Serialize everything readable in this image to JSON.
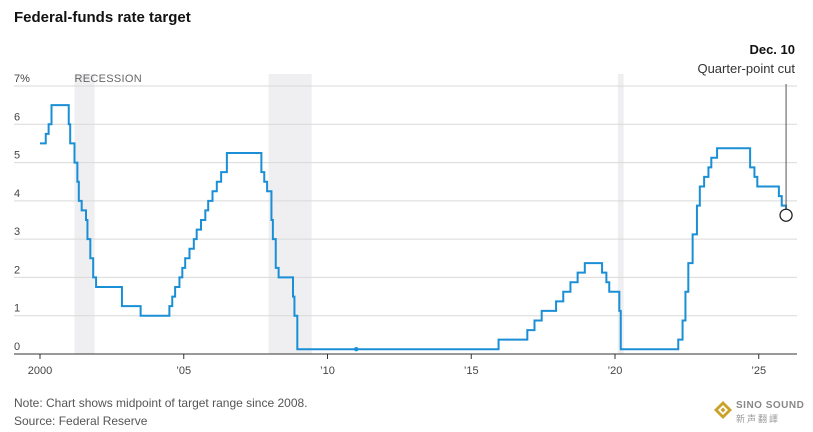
{
  "title": "Federal-funds rate target",
  "note": "Note: Chart shows midpoint of target range since 2008.",
  "source": "Source: Federal Reserve",
  "watermark": {
    "brand": "SINO SOUND",
    "cn": "新声翻譯"
  },
  "colors": {
    "line": "#1a8fd6",
    "recession": "#efeff1",
    "grid": "#d9d9d9",
    "axis": "#333333"
  },
  "chart_data": {
    "type": "line",
    "title": "Federal-funds rate target",
    "y_unit_label": "7%",
    "y_ticks": [
      0,
      1,
      2,
      3,
      4,
      5,
      6,
      7
    ],
    "x_ticks": [
      {
        "value": 2000,
        "label": "2000"
      },
      {
        "value": 2005,
        "label": "’05"
      },
      {
        "value": 2010,
        "label": "’10"
      },
      {
        "value": 2015,
        "label": "’15"
      },
      {
        "value": 2020,
        "label": "’20"
      },
      {
        "value": 2025,
        "label": "’25"
      }
    ],
    "xlim": [
      2000,
      2026
    ],
    "ylim": [
      0,
      7
    ],
    "grid": "horizontal",
    "recession_label": "RECESSION",
    "recessions": [
      [
        2001.2,
        2001.9
      ],
      [
        2007.95,
        2009.45
      ],
      [
        2020.1,
        2020.3
      ]
    ],
    "series": [
      {
        "points": [
          [
            2000.0,
            5.5
          ],
          [
            2000.2,
            5.75
          ],
          [
            2000.3,
            6.0
          ],
          [
            2000.4,
            6.5
          ],
          [
            2001.0,
            6.0
          ],
          [
            2001.05,
            5.5
          ],
          [
            2001.2,
            5.0
          ],
          [
            2001.3,
            4.5
          ],
          [
            2001.35,
            4.0
          ],
          [
            2001.45,
            3.75
          ],
          [
            2001.6,
            3.5
          ],
          [
            2001.65,
            3.0
          ],
          [
            2001.75,
            2.5
          ],
          [
            2001.85,
            2.0
          ],
          [
            2001.95,
            1.75
          ],
          [
            2002.85,
            1.25
          ],
          [
            2003.5,
            1.0
          ],
          [
            2004.5,
            1.25
          ],
          [
            2004.6,
            1.5
          ],
          [
            2004.7,
            1.75
          ],
          [
            2004.85,
            2.0
          ],
          [
            2004.95,
            2.25
          ],
          [
            2005.05,
            2.5
          ],
          [
            2005.2,
            2.75
          ],
          [
            2005.35,
            3.0
          ],
          [
            2005.45,
            3.25
          ],
          [
            2005.6,
            3.5
          ],
          [
            2005.75,
            3.75
          ],
          [
            2005.85,
            4.0
          ],
          [
            2006.0,
            4.25
          ],
          [
            2006.15,
            4.5
          ],
          [
            2006.3,
            4.75
          ],
          [
            2006.5,
            5.25
          ],
          [
            2007.7,
            4.75
          ],
          [
            2007.8,
            4.5
          ],
          [
            2007.9,
            4.25
          ],
          [
            2008.05,
            3.5
          ],
          [
            2008.1,
            3.0
          ],
          [
            2008.2,
            2.25
          ],
          [
            2008.3,
            2.0
          ],
          [
            2008.8,
            1.5
          ],
          [
            2008.85,
            1.0
          ],
          [
            2008.95,
            0.125
          ],
          [
            2015.95,
            0.375
          ],
          [
            2016.95,
            0.625
          ],
          [
            2017.2,
            0.875
          ],
          [
            2017.45,
            1.125
          ],
          [
            2017.95,
            1.375
          ],
          [
            2018.2,
            1.625
          ],
          [
            2018.45,
            1.875
          ],
          [
            2018.7,
            2.125
          ],
          [
            2018.95,
            2.375
          ],
          [
            2019.55,
            2.125
          ],
          [
            2019.7,
            1.875
          ],
          [
            2019.8,
            1.625
          ],
          [
            2020.15,
            1.125
          ],
          [
            2020.2,
            0.125
          ],
          [
            2022.2,
            0.375
          ],
          [
            2022.35,
            0.875
          ],
          [
            2022.45,
            1.625
          ],
          [
            2022.55,
            2.375
          ],
          [
            2022.7,
            3.125
          ],
          [
            2022.85,
            3.875
          ],
          [
            2022.95,
            4.375
          ],
          [
            2023.1,
            4.625
          ],
          [
            2023.25,
            4.875
          ],
          [
            2023.35,
            5.125
          ],
          [
            2023.55,
            5.375
          ],
          [
            2024.7,
            4.875
          ],
          [
            2024.85,
            4.625
          ],
          [
            2024.95,
            4.375
          ],
          [
            2025.7,
            4.125
          ],
          [
            2025.8,
            3.875
          ],
          [
            2025.95,
            3.625
          ]
        ],
        "end_x": 2025.95
      }
    ],
    "marker_points": [
      [
        2011.0,
        0.125
      ]
    ],
    "annotation": {
      "title": "Dec. 10",
      "subtitle": "Quarter-point cut",
      "point": [
        2025.95,
        3.625
      ]
    }
  }
}
